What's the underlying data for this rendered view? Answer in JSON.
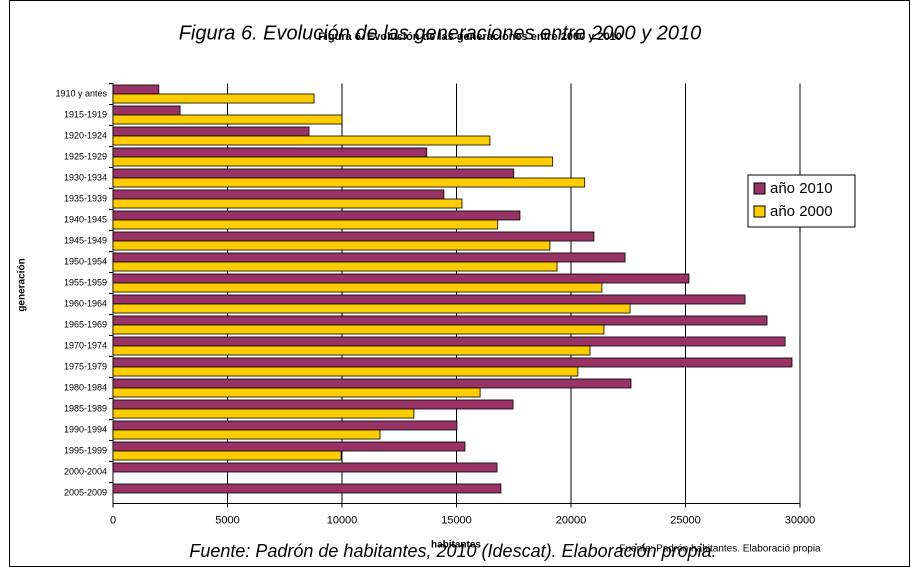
{
  "chart_data": {
    "type": "hbar",
    "title": "Figura 6. Evolución de las generaciones entre 2000 y 2010",
    "inner_title": "Figura 6. Evolución de las generaciones entre 2000 y 2010",
    "source": "Fuente: Padrón de habitantes, 2010 (Idescat). Elaboración propia.",
    "inner_source": "Fuente: Padrón habitantes. Elaboració propia",
    "x_label": "habitantes",
    "y_label": "generación",
    "categories": [
      "1910 y antes",
      "1915-1919",
      "1920-1924",
      "1925-1929",
      "1930-1934",
      "1935-1939",
      "1940-1945",
      "1945-1949",
      "1950-1954",
      "1955-1959",
      "1960-1964",
      "1965-1969",
      "1970-1974",
      "1975-1979",
      "1980-1984",
      "1985-1989",
      "1990-1994",
      "1995-1999",
      "2000-2004",
      "2005-2009"
    ],
    "series": [
      {
        "name": "año 2010",
        "color": "#993366",
        "values": [
          2000,
          2930,
          8560,
          13700,
          17500,
          14450,
          17770,
          21000,
          22360,
          25150,
          27600,
          28560,
          29350,
          29650,
          22620,
          17470,
          15020,
          15370,
          16770,
          16940
        ]
      },
      {
        "name": "año 2000",
        "color": "#ffcc00",
        "values": [
          8780,
          10000,
          16460,
          19200,
          20600,
          15240,
          16800,
          19080,
          19390,
          21350,
          22580,
          21440,
          20830,
          20300,
          16030,
          13140,
          11660,
          9960,
          0,
          0
        ]
      }
    ],
    "xlim": [
      0,
      30000
    ],
    "xticks": [
      0,
      5000,
      10000,
      15000,
      20000,
      25000,
      30000
    ],
    "grid": true,
    "legend": "right"
  }
}
